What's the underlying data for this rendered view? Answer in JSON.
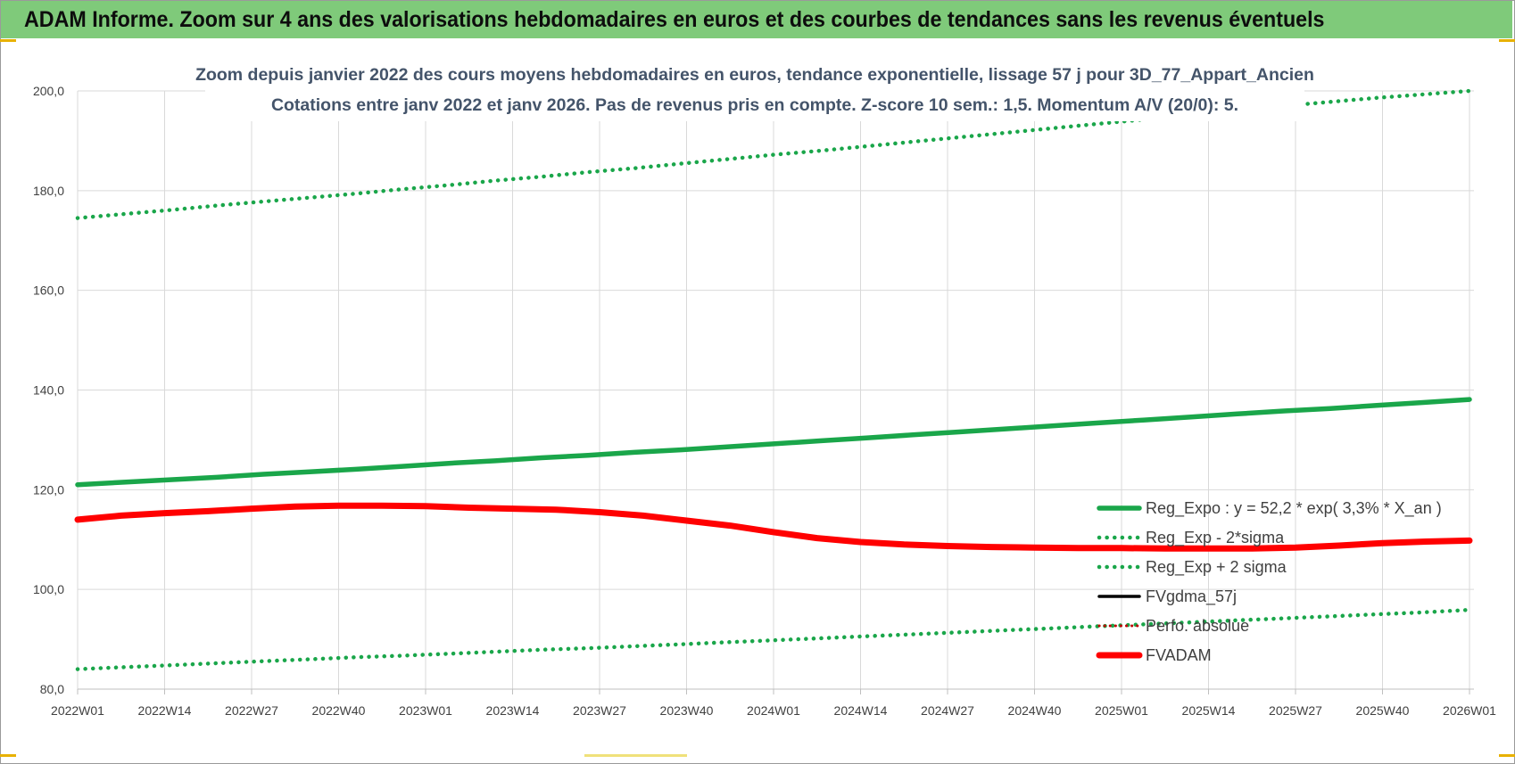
{
  "banner": {
    "title": "ADAM Informe. Zoom sur 4 ans des valorisations hebdomadaires en euros et des courbes de tendances sans les revenus éventuels"
  },
  "chart_data": {
    "type": "line",
    "title_line1": "Zoom depuis janvier 2022 des cours moyens hebdomadaires en euros, tendance exponentielle, lissage 57 j pour 3D_77_Appart_Ancien",
    "title_line2": "Cotations entre janv 2022 et janv 2026. Pas de revenus pris en compte. Z-score 10 sem.: 1,5. Momentum A/V (20/0): 5.",
    "xlabel": "",
    "ylabel": "",
    "ylim": [
      80,
      200
    ],
    "yticks": [
      "80,0",
      "100,0",
      "120,0",
      "140,0",
      "160,0",
      "180,0",
      "200,0"
    ],
    "x_ticks": [
      "2022W01",
      "2022W14",
      "2022W27",
      "2022W40",
      "2023W01",
      "2023W14",
      "2023W27",
      "2023W40",
      "2024W01",
      "2024W14",
      "2024W27",
      "2024W40",
      "2025W01",
      "2025W14",
      "2025W27",
      "2025W40",
      "2026W01"
    ],
    "grid": true,
    "legend_position": "right",
    "series": [
      {
        "name": "Reg_Expo : y = 52,2 * exp( 3,3% * X_an )",
        "color": "#1aa64a",
        "style": "solid",
        "values": [
          121.0,
          121.5,
          122.0,
          122.5,
          123.1,
          123.6,
          124.1,
          124.7,
          125.3,
          125.8,
          126.4,
          126.9,
          127.5,
          128.0,
          128.6,
          129.2,
          129.8,
          130.4,
          131.0,
          131.6,
          132.2,
          132.8,
          133.4,
          134.0,
          134.6,
          135.2,
          135.8,
          136.3,
          136.9,
          137.5,
          138.1
        ]
      },
      {
        "name": "Reg_Exp - 2*sigma",
        "color": "#1aa64a",
        "style": "dotted",
        "values": [
          84.0,
          84.4,
          84.8,
          85.2,
          85.6,
          86.0,
          86.4,
          86.7,
          87.1,
          87.5,
          87.9,
          88.2,
          88.6,
          89.0,
          89.4,
          89.8,
          90.2,
          90.6,
          91.0,
          91.4,
          91.8,
          92.2,
          92.6,
          93.0,
          93.4,
          93.8,
          94.2,
          94.6,
          95.0,
          95.4,
          95.9
        ]
      },
      {
        "name": "Reg_Exp + 2 sigma",
        "color": "#1aa64a",
        "style": "dotted",
        "values": [
          174.5,
          175.3,
          176.1,
          177.0,
          177.8,
          178.6,
          179.4,
          180.3,
          181.1,
          182.0,
          182.8,
          183.7,
          184.5,
          185.4,
          186.3,
          187.2,
          188.0,
          188.9,
          189.8,
          190.7,
          191.6,
          192.5,
          193.4,
          194.3,
          195.2,
          196.1,
          197.0,
          197.8,
          198.6,
          199.3,
          200.0
        ]
      },
      {
        "name": "FVgdma_57j",
        "color": "#000000",
        "style": "solid",
        "values": [
          114.0,
          114.8,
          115.3,
          115.7,
          116.2,
          116.6,
          116.8,
          116.8,
          116.7,
          116.4,
          116.2,
          116.0,
          115.5,
          114.8,
          113.8,
          112.8,
          111.5,
          110.3,
          109.5,
          109.0,
          108.7,
          108.5,
          108.4,
          108.3,
          108.3,
          108.2,
          108.2,
          108.2,
          108.4,
          108.8,
          109.3,
          109.6,
          109.8
        ]
      },
      {
        "name": "Perfo. absolue",
        "color": "#c00000",
        "style": "dotted",
        "values": [
          114.0,
          114.8,
          115.3,
          115.7,
          116.2,
          116.6,
          116.8,
          116.8,
          116.7,
          116.4,
          116.2,
          116.0,
          115.5,
          114.8,
          113.8,
          112.8,
          111.5,
          110.3,
          109.5,
          109.0,
          108.7,
          108.5,
          108.4,
          108.3,
          108.3,
          108.2,
          108.2,
          108.2,
          108.4,
          108.8,
          109.3,
          109.6,
          109.8
        ]
      },
      {
        "name": "FVADAM",
        "color": "#ff0000",
        "style": "solid",
        "values": [
          114.0,
          114.8,
          115.3,
          115.7,
          116.2,
          116.6,
          116.8,
          116.8,
          116.7,
          116.4,
          116.2,
          116.0,
          115.5,
          114.8,
          113.8,
          112.8,
          111.5,
          110.3,
          109.5,
          109.0,
          108.7,
          108.5,
          108.4,
          108.3,
          108.3,
          108.2,
          108.2,
          108.2,
          108.4,
          108.8,
          109.3,
          109.6,
          109.8
        ]
      }
    ]
  }
}
